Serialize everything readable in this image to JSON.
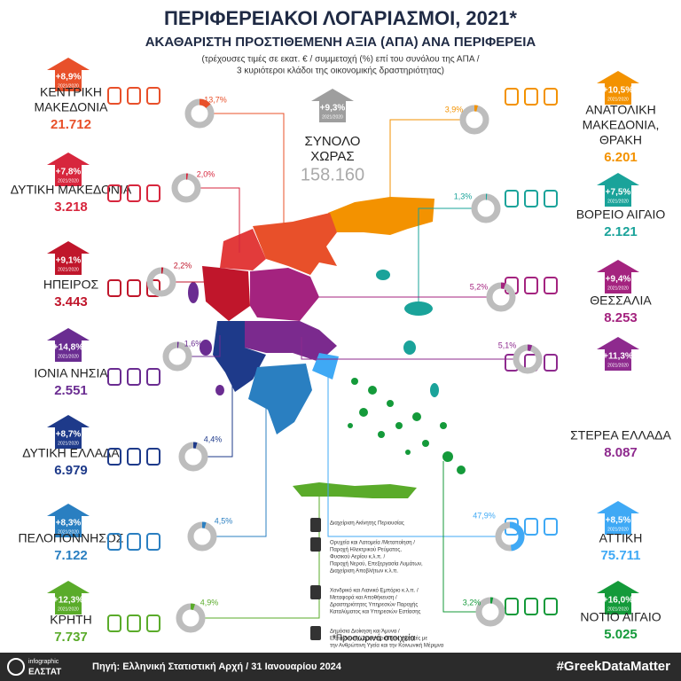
{
  "header": {
    "title": "ΠΕΡΙΦΕΡΕΙΑΚΟΙ ΛΟΓΑΡΙΑΣΜΟΙ, 2021*",
    "subtitle": "ΑΚΑΘΑΡΙΣΤΗ ΠΡΟΣΤΙΘΕΜΕΝΗ ΑΞΙΑ (ΑΠΑ) ΑΝΑ ΠΕΡΙΦΕΡΕΙΑ",
    "note_lines": [
      "(τρέχουσες τιμές σε εκατ. € / συμμετοχή (%) επί του συνόλου της ΑΠΑ /",
      "3 κυριότεροι κλάδοι της οικονομικής δραστηριότητας)"
    ]
  },
  "badge_period": "2021/2020",
  "total": {
    "name_lines": [
      "ΣΥΝΟΛΟ",
      "ΧΩΡΑΣ"
    ],
    "value": "158.160",
    "growth": "+9,3%"
  },
  "regions": [
    {
      "name_lines": [
        "ΚΕΝΤΡΙΚΗ",
        "ΜΑΚΕΔΟΝΙΑ"
      ],
      "value": "21.712",
      "growth": "+8,9%",
      "share": 13.7,
      "share_label": "13,7%",
      "color": "#e8502a"
    },
    {
      "name_lines": [
        "ΔΥΤΙΚΗ ΜΑΚΕΔΟΝΙΑ"
      ],
      "value": "3.218",
      "growth": "+7,8%",
      "share": 2.0,
      "share_label": "2,0%",
      "color": "#d7263d"
    },
    {
      "name_lines": [
        "ΗΠΕΙΡΟΣ"
      ],
      "value": "3.443",
      "growth": "+9,1%",
      "share": 2.2,
      "share_label": "2,2%",
      "color": "#c0162b"
    },
    {
      "name_lines": [
        "ΙΟΝΙΑ ΝΗΣΙΑ"
      ],
      "value": "2.551",
      "growth": "+14,8%",
      "share": 1.6,
      "share_label": "1,6%",
      "color": "#6a2c91"
    },
    {
      "name_lines": [
        "ΔΥΤΙΚΗ ΕΛΛΑΔΑ"
      ],
      "value": "6.979",
      "growth": "+8,7%",
      "share": 4.4,
      "share_label": "4,4%",
      "color": "#1e3a8a"
    },
    {
      "name_lines": [
        "ΠΕΛΟΠΟΝΝΗΣΟΣ"
      ],
      "value": "7.122",
      "growth": "+8,3%",
      "share": 4.5,
      "share_label": "4,5%",
      "color": "#2a7fc1"
    },
    {
      "name_lines": [
        "ΚΡΗΤΗ"
      ],
      "value": "7.737",
      "growth": "+12,3%",
      "share": 4.9,
      "share_label": "4,9%",
      "color": "#5aab2a"
    },
    {
      "name_lines": [
        "ΑΝΑΤΟΛΙΚΗ",
        "ΜΑΚΕΔΟΝΙΑ,",
        "ΘΡΑΚΗ"
      ],
      "value": "6.201",
      "growth": "+10,5%",
      "share": 3.9,
      "share_label": "3,9%",
      "color": "#f39200"
    },
    {
      "name_lines": [
        "ΒΟΡΕΙΟ ΑΙΓΑΙΟ"
      ],
      "value": "2.121",
      "growth": "+7,5%",
      "share": 1.3,
      "share_label": "1,3%",
      "color": "#1aa39a"
    },
    {
      "name_lines": [
        "ΘΕΣΣΑΛΙΑ"
      ],
      "value": "8.253",
      "growth": "+9,4%",
      "share": 5.2,
      "share_label": "5,2%",
      "color": "#a4237f"
    },
    {
      "name_lines": [
        "ΣΤΕΡΕΑ ΕΛΛΑΔΑ"
      ],
      "value": "8.087",
      "growth": "+11,3%",
      "share": 5.1,
      "share_label": "5,1%",
      "color": "#8e2a8e"
    },
    {
      "name_lines": [
        "ΑΤΤΙΚΗ"
      ],
      "value": "75.711",
      "growth": "+8,5%",
      "share": 47.9,
      "share_label": "47,9%",
      "color": "#3fa9f5"
    },
    {
      "name_lines": [
        "ΝΟΤΙΟ ΑΙΓΑΙΟ"
      ],
      "value": "5.025",
      "growth": "+16,0%",
      "share": 3.2,
      "share_label": "3,2%",
      "color": "#149a3a"
    }
  ],
  "legend": [
    {
      "lines": [
        "Διαχείριση Ακίνητης Περιουσίας"
      ]
    },
    {
      "lines": [
        "Ορυχεία και Λατομεία /Μεταποίηση /",
        "Παροχή Ηλεκτρικού Ρεύματος,",
        "Φυσικού Αερίου κ.λ.π. /",
        "Παροχή Νερού, Επεξεργασία Λυμάτων,",
        "Διαχείριση Αποβλήτων κ.λ.π."
      ]
    },
    {
      "lines": [
        "Χονδρικό και Λιανικό Εμπόριο κ.λ.π. /",
        "Μεταφορά και Αποθήκευση /",
        "Δραστηριότητες Υπηρεσιών Παροχής",
        "Καταλύματος και Υπηρεσιών Εστίασης"
      ]
    },
    {
      "lines": [
        "Δημόσια Διοίκηση και Άμυνα /",
        "Εκπαίδευση / Δραστηριότητες σχετικές με",
        "την Ανθρώπινη Υγεία και την Κοινωνική Μέριμνα"
      ]
    }
  ],
  "footnote": "*Προσωρινά στοιχεία",
  "footer": {
    "logo_top": "infographic",
    "logo_bottom": "ΕΛΣΤΑΤ",
    "source": "Πηγή: Ελληνική Στατιστική Αρχή  / 31 Ιανουαρίου 2024",
    "hashtag": "#GreekDataMatter"
  }
}
